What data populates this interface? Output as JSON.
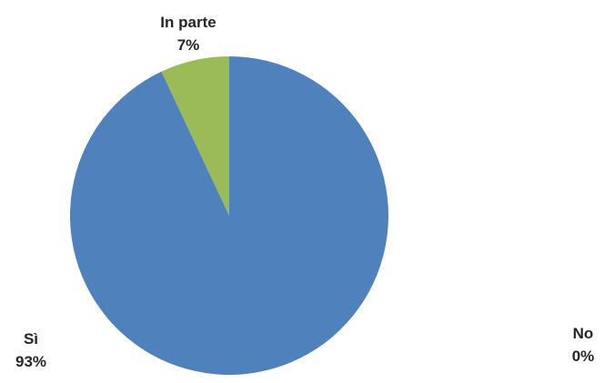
{
  "chart_data": {
    "type": "pie",
    "title": "",
    "categories": [
      "Sì",
      "No",
      "In parte"
    ],
    "values": [
      93,
      0,
      7
    ],
    "value_labels": [
      "93%",
      "0%",
      "7%"
    ],
    "unit": "%",
    "colors": [
      "#4F81BD",
      "#C0504D",
      "#9BBB59"
    ],
    "start_angle": "12 o'clock",
    "direction": "clockwise",
    "legend": "none",
    "data_labels": "outside, category name above percentage"
  }
}
